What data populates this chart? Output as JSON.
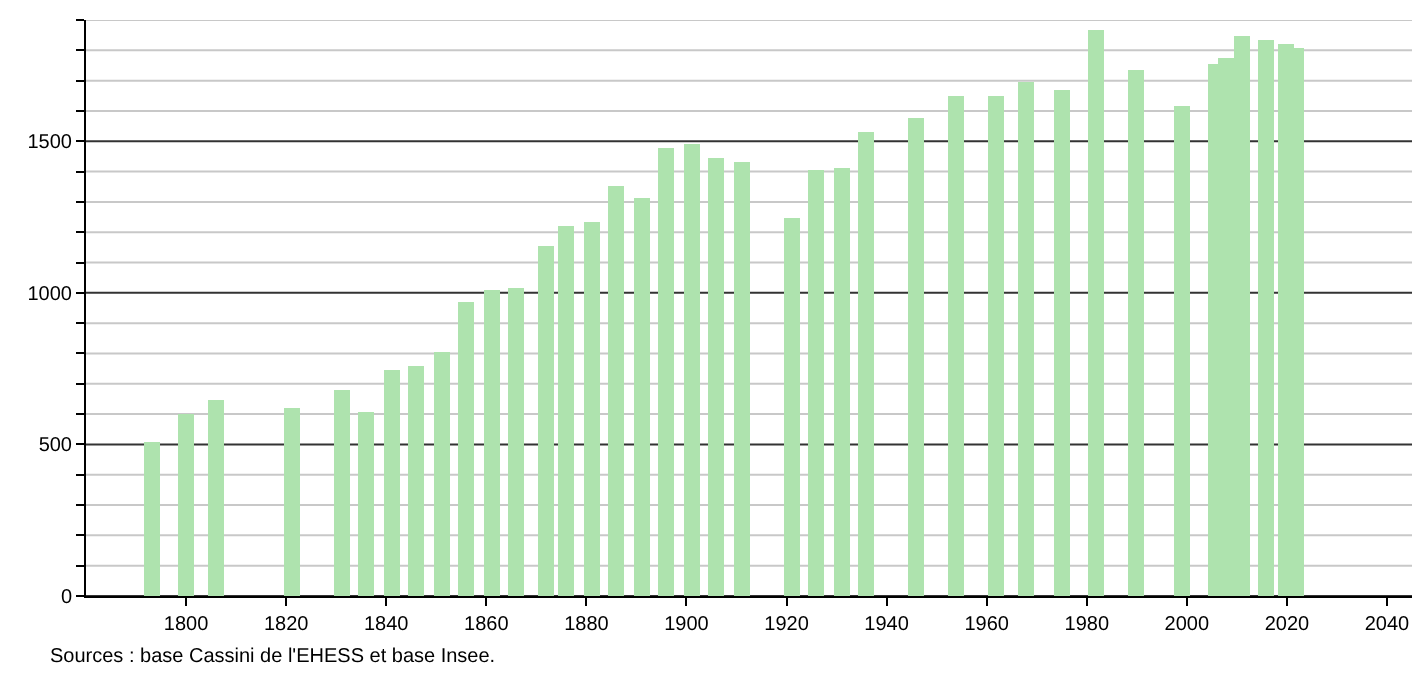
{
  "chart_data": {
    "type": "bar",
    "color": "#aee3ae",
    "x": [
      1793,
      1800,
      1806,
      1821,
      1831,
      1836,
      1841,
      1846,
      1851,
      1856,
      1861,
      1866,
      1872,
      1876,
      1881,
      1886,
      1891,
      1896,
      1901,
      1906,
      1911,
      1921,
      1926,
      1931,
      1936,
      1946,
      1954,
      1962,
      1968,
      1975,
      1982,
      1990,
      1999,
      2006,
      2008,
      2011,
      2016,
      2020,
      2022
    ],
    "values": [
      510,
      600,
      648,
      620,
      681,
      609,
      745,
      760,
      802,
      969,
      1007,
      1018,
      1154,
      1220,
      1233,
      1352,
      1314,
      1477,
      1490,
      1446,
      1431,
      1244,
      1402,
      1411,
      1530,
      1578,
      1648,
      1648,
      1697,
      1668,
      1868,
      1734,
      1615,
      1754,
      1775,
      1846,
      1837,
      1824,
      1807
    ],
    "xlim": [
      1780,
      2045
    ],
    "ylim": [
      0,
      1900
    ],
    "xticks": [
      1800,
      1820,
      1840,
      1860,
      1880,
      1900,
      1920,
      1940,
      1960,
      1980,
      2000,
      2020,
      2040
    ],
    "yticks": [
      0,
      {
        "value": 100,
        "label": null
      },
      {
        "value": 200,
        "label": null
      },
      {
        "value": 300,
        "label": null
      },
      {
        "value": 400,
        "label": null
      },
      500,
      {
        "value": 600,
        "label": null
      },
      {
        "value": 700,
        "label": null
      },
      {
        "value": 800,
        "label": null
      },
      {
        "value": 900,
        "label": null
      },
      1000,
      {
        "value": 1100,
        "label": null
      },
      {
        "value": 1200,
        "label": null
      },
      {
        "value": 1300,
        "label": null
      },
      {
        "value": 1400,
        "label": null
      },
      1500,
      {
        "value": 1600,
        "label": null
      },
      {
        "value": 1700,
        "label": null
      },
      {
        "value": 1800,
        "label": null
      },
      {
        "value": 1900,
        "label": null
      }
    ],
    "grid": "y",
    "annotations": [
      "Sources : base Cassini de l'EHESS et base Insee."
    ]
  }
}
